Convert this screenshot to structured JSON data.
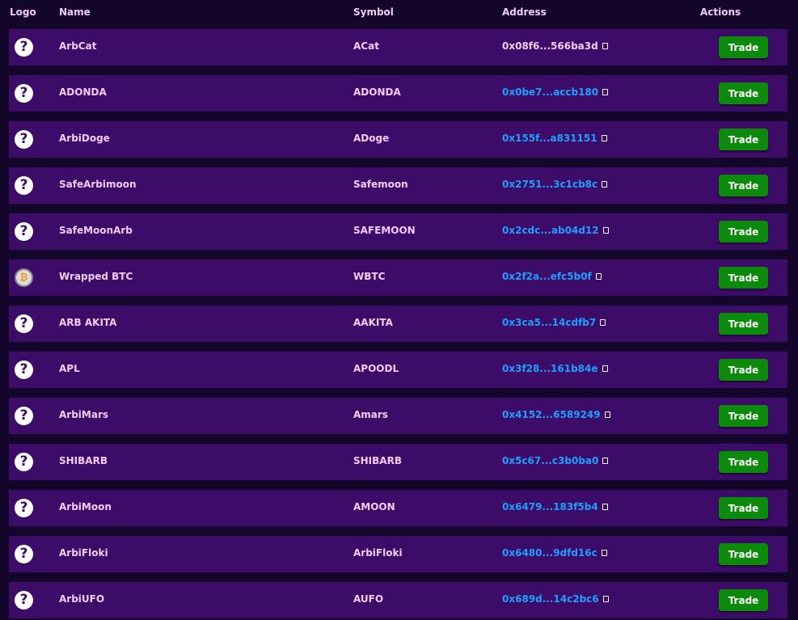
{
  "headers": {
    "logo": "Logo",
    "name": "Name",
    "symbol": "Symbol",
    "address": "Address",
    "actions": "Actions"
  },
  "colors": {
    "row_bg": "#3d0c68",
    "page_bg": "#14052a",
    "link": "#1ea0ff",
    "button": "#0b8a0b"
  },
  "trade_label": "Trade",
  "tokens": [
    {
      "logo": "question-icon",
      "name": "ArbCat",
      "symbol": "ACat",
      "address": "0x08f6...566ba3d"
    },
    {
      "logo": "question-icon",
      "name": "ADONDA",
      "symbol": "ADONDA",
      "address": "0x0be7...accb180"
    },
    {
      "logo": "question-icon",
      "name": "ArbiDoge",
      "symbol": "ADoge",
      "address": "0x155f...a831151"
    },
    {
      "logo": "question-icon",
      "name": "SafeArbimoon",
      "symbol": "Safemoon",
      "address": "0x2751...3c1cb8c"
    },
    {
      "logo": "question-icon",
      "name": "SafeMoonArb",
      "symbol": "SAFEMOON",
      "address": "0x2cdc...ab04d12"
    },
    {
      "logo": "bitcoin-icon",
      "name": "Wrapped BTC",
      "symbol": "WBTC",
      "address": "0x2f2a...efc5b0f"
    },
    {
      "logo": "question-icon",
      "name": "ARB AKITA",
      "symbol": "AAKITA",
      "address": "0x3ca5...14cdfb7"
    },
    {
      "logo": "question-icon",
      "name": "APL",
      "symbol": "APOODL",
      "address": "0x3f28...161b84e"
    },
    {
      "logo": "question-icon",
      "name": "ArbiMars",
      "symbol": "Amars",
      "address": "0x4152...6589249"
    },
    {
      "logo": "question-icon",
      "name": "SHIBARB",
      "symbol": "SHIBARB",
      "address": "0x5c67...c3b0ba0"
    },
    {
      "logo": "question-icon",
      "name": "ArbiMoon",
      "symbol": "AMOON",
      "address": "0x6479...183f5b4"
    },
    {
      "logo": "question-icon",
      "name": "ArbiFloki",
      "symbol": "ArbiFloki",
      "address": "0x6480...9dfd16c"
    },
    {
      "logo": "question-icon",
      "name": "ArbiUFO",
      "symbol": "AUFO",
      "address": "0x689d...14c2bc6"
    }
  ]
}
